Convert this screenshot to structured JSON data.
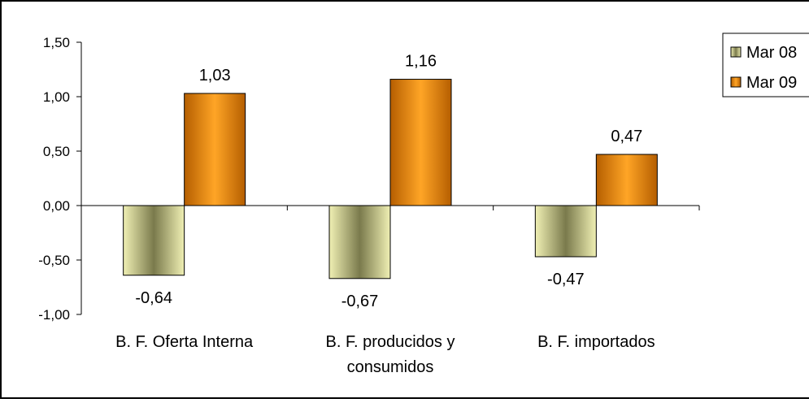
{
  "chart_data": {
    "type": "bar",
    "categories": [
      [
        "B. F. Oferta Interna"
      ],
      [
        "B. F. producidos y",
        "consumidos"
      ],
      [
        "B. F. importados"
      ]
    ],
    "series": [
      {
        "name": "Mar 08",
        "values": [
          -0.64,
          -0.67,
          -0.47
        ],
        "labels": [
          "-0,64",
          "-0,67",
          "-0,47"
        ],
        "color_light": "#f0f0b4",
        "color_dark": "#7a7a4c"
      },
      {
        "name": "Mar 09",
        "values": [
          1.03,
          1.16,
          0.47
        ],
        "labels": [
          "1,03",
          "1,16",
          "0,47"
        ],
        "color_light": "#ffa526",
        "color_dark": "#b55e00"
      }
    ],
    "ylim": [
      -1.0,
      1.5
    ],
    "yticks": [
      1.5,
      1.0,
      0.5,
      0.0,
      -0.5,
      -1.0
    ],
    "ytick_labels": [
      "1,50",
      "1,00",
      "0,50",
      "0,00",
      "-0,50",
      "-1,00"
    ],
    "title": "",
    "xlabel": "",
    "ylabel": "",
    "legend_position": "top-right",
    "grid": false
  }
}
